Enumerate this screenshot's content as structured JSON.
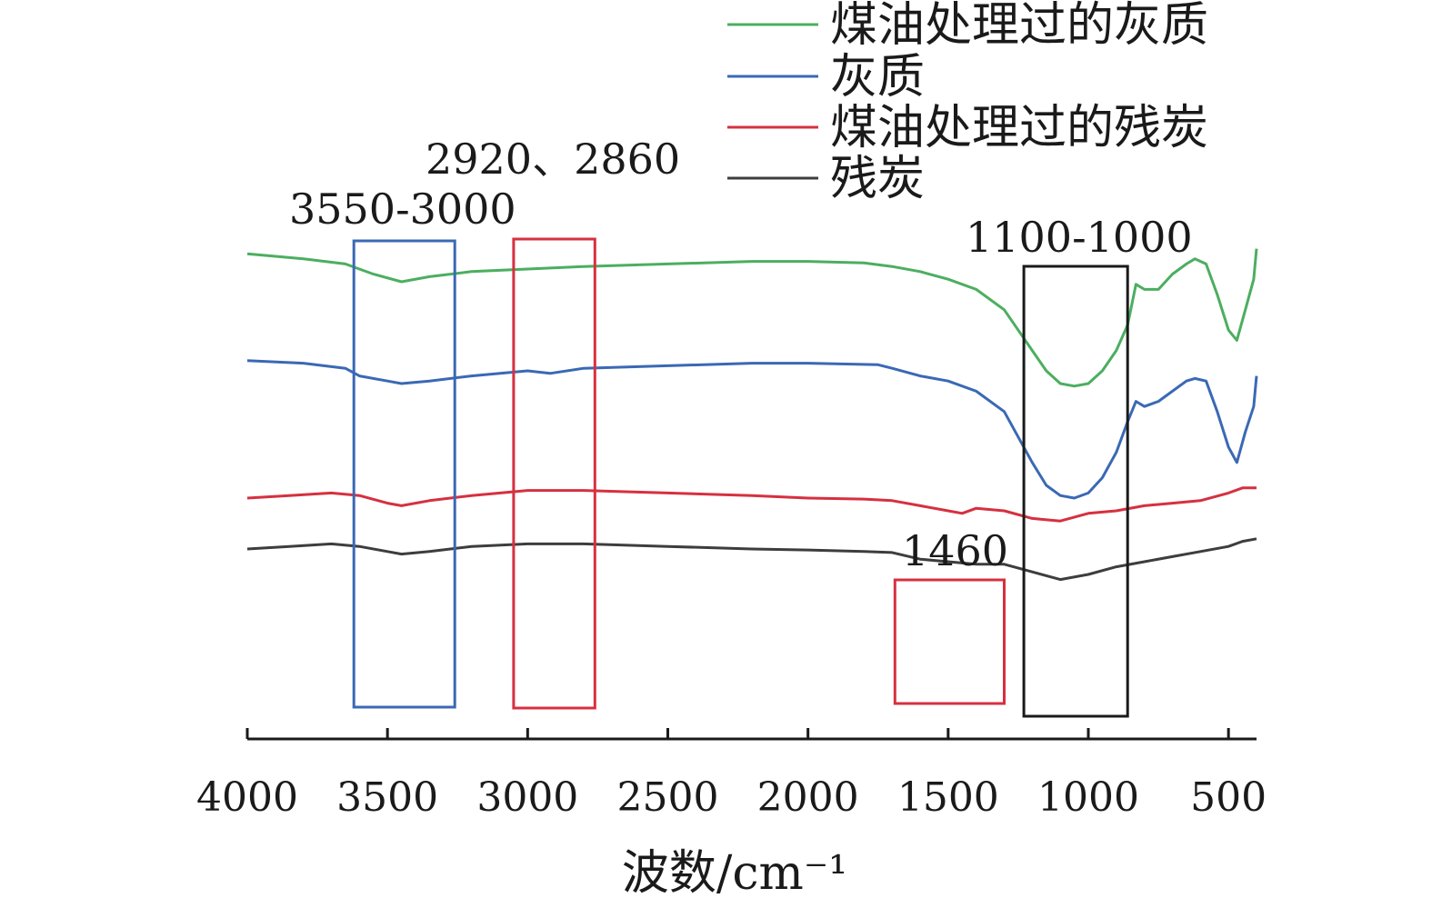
{
  "chart_data": {
    "type": "line",
    "xlabel": "波数/cm⁻¹",
    "ylabel": "",
    "xlim": [
      4000,
      400
    ],
    "x_reversed": true,
    "x_ticks": [
      4000,
      3500,
      3000,
      2500,
      2000,
      1500,
      1000,
      500
    ],
    "x_tick_labels": [
      "4000",
      "3500",
      "3000",
      "2500",
      "2000",
      "1500",
      "1000",
      "500"
    ],
    "y_axis_shown": false,
    "grid": false,
    "legend_position": "top-right",
    "series": [
      {
        "name": "煤油处理过的灰质",
        "color": "#4cae60",
        "points": [
          [
            4000,
            0.93
          ],
          [
            3800,
            0.92
          ],
          [
            3650,
            0.91
          ],
          [
            3550,
            0.89
          ],
          [
            3450,
            0.875
          ],
          [
            3350,
            0.885
          ],
          [
            3200,
            0.895
          ],
          [
            3000,
            0.9
          ],
          [
            2800,
            0.905
          ],
          [
            2500,
            0.91
          ],
          [
            2200,
            0.915
          ],
          [
            2000,
            0.915
          ],
          [
            1800,
            0.912
          ],
          [
            1700,
            0.905
          ],
          [
            1600,
            0.895
          ],
          [
            1500,
            0.88
          ],
          [
            1400,
            0.86
          ],
          [
            1300,
            0.82
          ],
          [
            1250,
            0.78
          ],
          [
            1200,
            0.74
          ],
          [
            1150,
            0.7
          ],
          [
            1100,
            0.675
          ],
          [
            1050,
            0.67
          ],
          [
            1000,
            0.675
          ],
          [
            950,
            0.7
          ],
          [
            900,
            0.74
          ],
          [
            860,
            0.79
          ],
          [
            830,
            0.87
          ],
          [
            800,
            0.86
          ],
          [
            750,
            0.86
          ],
          [
            700,
            0.89
          ],
          [
            650,
            0.91
          ],
          [
            620,
            0.92
          ],
          [
            580,
            0.91
          ],
          [
            540,
            0.85
          ],
          [
            500,
            0.78
          ],
          [
            470,
            0.76
          ],
          [
            440,
            0.82
          ],
          [
            410,
            0.88
          ],
          [
            400,
            0.94
          ]
        ]
      },
      {
        "name": "灰质",
        "color": "#3a69b4",
        "points": [
          [
            4000,
            0.72
          ],
          [
            3800,
            0.715
          ],
          [
            3650,
            0.705
          ],
          [
            3600,
            0.69
          ],
          [
            3500,
            0.68
          ],
          [
            3450,
            0.675
          ],
          [
            3350,
            0.68
          ],
          [
            3200,
            0.69
          ],
          [
            3000,
            0.7
          ],
          [
            2920,
            0.695
          ],
          [
            2800,
            0.705
          ],
          [
            2500,
            0.71
          ],
          [
            2200,
            0.715
          ],
          [
            2000,
            0.715
          ],
          [
            1750,
            0.712
          ],
          [
            1700,
            0.705
          ],
          [
            1600,
            0.69
          ],
          [
            1500,
            0.68
          ],
          [
            1400,
            0.66
          ],
          [
            1300,
            0.62
          ],
          [
            1250,
            0.57
          ],
          [
            1200,
            0.52
          ],
          [
            1150,
            0.475
          ],
          [
            1100,
            0.455
          ],
          [
            1050,
            0.45
          ],
          [
            1000,
            0.46
          ],
          [
            950,
            0.49
          ],
          [
            900,
            0.54
          ],
          [
            860,
            0.6
          ],
          [
            830,
            0.64
          ],
          [
            800,
            0.63
          ],
          [
            750,
            0.64
          ],
          [
            700,
            0.66
          ],
          [
            650,
            0.68
          ],
          [
            620,
            0.685
          ],
          [
            580,
            0.68
          ],
          [
            540,
            0.62
          ],
          [
            500,
            0.55
          ],
          [
            470,
            0.52
          ],
          [
            440,
            0.58
          ],
          [
            410,
            0.63
          ],
          [
            400,
            0.69
          ]
        ]
      },
      {
        "name": "煤油处理过的残炭",
        "color": "#d63040",
        "points": [
          [
            4000,
            0.45
          ],
          [
            3850,
            0.455
          ],
          [
            3700,
            0.46
          ],
          [
            3600,
            0.455
          ],
          [
            3500,
            0.44
          ],
          [
            3450,
            0.435
          ],
          [
            3350,
            0.445
          ],
          [
            3200,
            0.455
          ],
          [
            3000,
            0.465
          ],
          [
            2800,
            0.465
          ],
          [
            2500,
            0.46
          ],
          [
            2200,
            0.455
          ],
          [
            2000,
            0.45
          ],
          [
            1800,
            0.448
          ],
          [
            1700,
            0.445
          ],
          [
            1600,
            0.435
          ],
          [
            1500,
            0.425
          ],
          [
            1450,
            0.42
          ],
          [
            1400,
            0.43
          ],
          [
            1300,
            0.425
          ],
          [
            1200,
            0.41
          ],
          [
            1100,
            0.405
          ],
          [
            1000,
            0.42
          ],
          [
            900,
            0.425
          ],
          [
            800,
            0.435
          ],
          [
            700,
            0.44
          ],
          [
            600,
            0.445
          ],
          [
            500,
            0.46
          ],
          [
            450,
            0.47
          ],
          [
            400,
            0.47
          ]
        ]
      },
      {
        "name": "残炭",
        "color": "#3d3d3d",
        "points": [
          [
            4000,
            0.35
          ],
          [
            3850,
            0.355
          ],
          [
            3700,
            0.36
          ],
          [
            3600,
            0.355
          ],
          [
            3500,
            0.345
          ],
          [
            3450,
            0.34
          ],
          [
            3350,
            0.345
          ],
          [
            3200,
            0.355
          ],
          [
            3000,
            0.36
          ],
          [
            2800,
            0.36
          ],
          [
            2500,
            0.355
          ],
          [
            2200,
            0.35
          ],
          [
            2000,
            0.348
          ],
          [
            1800,
            0.345
          ],
          [
            1700,
            0.343
          ],
          [
            1600,
            0.33
          ],
          [
            1500,
            0.325
          ],
          [
            1400,
            0.32
          ],
          [
            1300,
            0.32
          ],
          [
            1200,
            0.305
          ],
          [
            1100,
            0.29
          ],
          [
            1000,
            0.3
          ],
          [
            900,
            0.315
          ],
          [
            800,
            0.325
          ],
          [
            700,
            0.335
          ],
          [
            600,
            0.345
          ],
          [
            500,
            0.355
          ],
          [
            450,
            0.365
          ],
          [
            400,
            0.37
          ]
        ]
      }
    ],
    "annotations": [
      {
        "label": "3550-3000",
        "x_range": [
          3620,
          3260
        ],
        "color": "#3a69b4"
      },
      {
        "label": "2920、2860",
        "x_range": [
          3050,
          2760
        ],
        "color": "#d63040"
      },
      {
        "label": "1460",
        "x_range": [
          1690,
          1300
        ],
        "color": "#d63040"
      },
      {
        "label": "1100-1000",
        "x_range": [
          1230,
          860
        ],
        "color": "#1a1a1a"
      }
    ]
  }
}
